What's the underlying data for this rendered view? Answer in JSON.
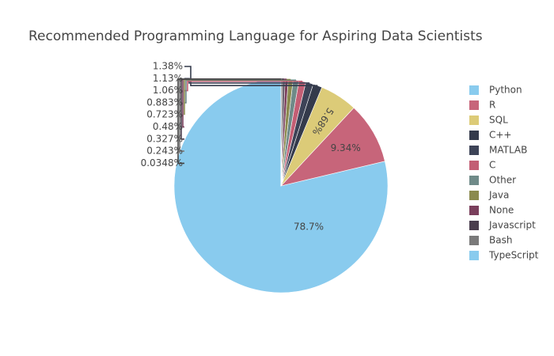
{
  "chart_data": {
    "type": "pie",
    "title": "Recommended Programming Language for Aspiring Data Scientists",
    "legend_position": "right",
    "slices": [
      {
        "label": "Python",
        "value": 78.7,
        "value_label": "78.7%",
        "color": "#89cbee"
      },
      {
        "label": "R",
        "value": 9.34,
        "value_label": "9.34%",
        "color": "#c7657a"
      },
      {
        "label": "SQL",
        "value": 5.68,
        "value_label": "5.68%",
        "color": "#dccb78"
      },
      {
        "label": "C++",
        "value": 1.38,
        "value_label": "1.38%",
        "color": "#343a4b"
      },
      {
        "label": "MATLAB",
        "value": 1.13,
        "value_label": "1.13%",
        "color": "#3d4357"
      },
      {
        "label": "C",
        "value": 1.06,
        "value_label": "1.06%",
        "color": "#c35e74"
      },
      {
        "label": "Other",
        "value": 0.883,
        "value_label": "0.883%",
        "color": "#6f8a88"
      },
      {
        "label": "Java",
        "value": 0.723,
        "value_label": "0.723%",
        "color": "#8b8a4e"
      },
      {
        "label": "None",
        "value": 0.48,
        "value_label": "0.48%",
        "color": "#7a3f5c"
      },
      {
        "label": "Javascript",
        "value": 0.327,
        "value_label": "0.327%",
        "color": "#4a3d4d"
      },
      {
        "label": "Bash",
        "value": 0.243,
        "value_label": "0.243%",
        "color": "#7a7a7a"
      },
      {
        "label": "TypeScript",
        "value": 0.0348,
        "value_label": "0.0348%",
        "color": "#89cbee"
      }
    ]
  }
}
